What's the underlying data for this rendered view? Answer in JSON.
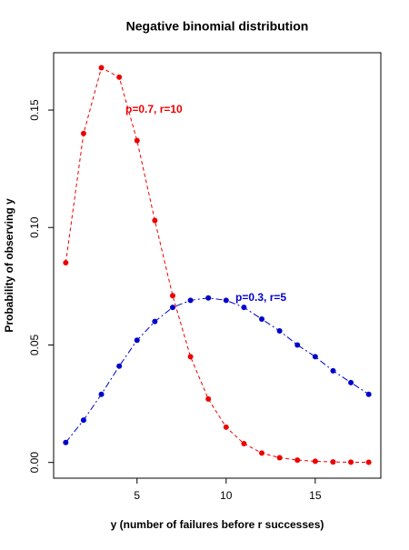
{
  "chart_data": {
    "type": "line",
    "title": "Negative binomial distribution",
    "xlabel": "y (number of failures before r successes)",
    "ylabel": "Probability of observing y",
    "x": [
      1,
      2,
      3,
      4,
      5,
      6,
      7,
      8,
      9,
      10,
      11,
      12,
      13,
      14,
      15,
      16,
      17,
      18
    ],
    "series": [
      {
        "name": "p=0.7, r=10",
        "color": "#ee0000",
        "dash": "4,3",
        "values": [
          0.085,
          0.14,
          0.168,
          0.164,
          0.137,
          0.103,
          0.071,
          0.045,
          0.027,
          0.015,
          0.008,
          0.004,
          0.002,
          0.001,
          0.0005,
          0.0002,
          0.0001,
          5e-05
        ]
      },
      {
        "name": "p=0.3, r=5",
        "color": "#0000cc",
        "dash": "7,3,2,3",
        "values": [
          0.0085,
          0.018,
          0.029,
          0.041,
          0.052,
          0.06,
          0.066,
          0.069,
          0.07,
          0.069,
          0.066,
          0.061,
          0.056,
          0.05,
          0.045,
          0.039,
          0.034,
          0.029
        ]
      }
    ],
    "xlim": [
      0.32,
      18.68
    ],
    "ylim": [
      -0.0067,
      0.1744
    ],
    "xticks": [
      5,
      10,
      15
    ],
    "yticks": [
      {
        "value": 0,
        "label": "0.00"
      },
      {
        "value": 0.05,
        "label": "0.05"
      },
      {
        "value": 0.1,
        "label": "0.10"
      },
      {
        "value": 0.15,
        "label": "0.15"
      }
    ]
  }
}
